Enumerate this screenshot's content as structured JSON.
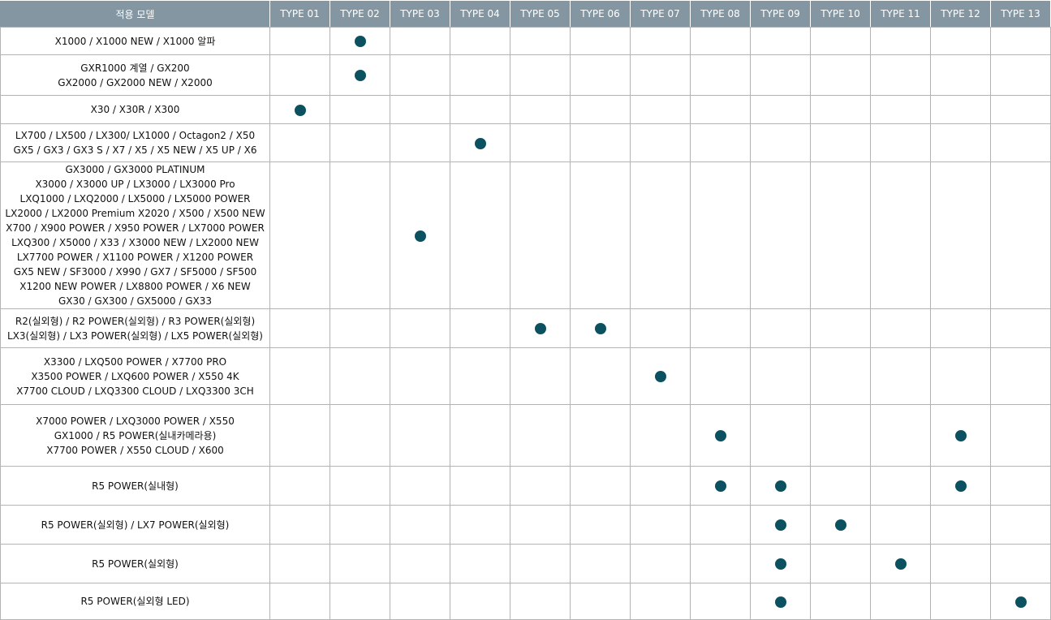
{
  "header": {
    "model_label": "적용 모델",
    "types": [
      "TYPE 01",
      "TYPE 02",
      "TYPE 03",
      "TYPE 04",
      "TYPE 05",
      "TYPE 06",
      "TYPE 07",
      "TYPE 08",
      "TYPE 09",
      "TYPE 10",
      "TYPE 11",
      "TYPE 12",
      "TYPE 13"
    ]
  },
  "dot_color": "#0c5160",
  "rows": [
    {
      "lines": [
        "X1000 / X1000 NEW / X1000 알파"
      ],
      "types": [
        2
      ]
    },
    {
      "lines": [
        "GXR1000 계열 / GX200",
        "GX2000 / GX2000 NEW / X2000"
      ],
      "types": [
        2
      ]
    },
    {
      "lines": [
        "X30 / X30R / X300"
      ],
      "types": [
        1
      ]
    },
    {
      "lines": [
        "LX700 / LX500 / LX300/ LX1000 / Octagon2 / X50",
        "GX5 / GX3 / GX3 S / X7 / X5 / X5 NEW / X5 UP / X6"
      ],
      "types": [
        4
      ]
    },
    {
      "lines": [
        "GX3000 / GX3000 PLATINUM",
        "X3000 / X3000 UP / LX3000 / LX3000 Pro",
        "LXQ1000 / LXQ2000 / LX5000 / LX5000 POWER",
        "LX2000 / LX2000 Premium X2020 / X500 / X500 NEW",
        "X700 / X900 POWER / X950 POWER / LX7000 POWER",
        "LXQ300 / X5000 / X33 / X3000 NEW / LX2000 NEW",
        "LX7700 POWER / X1100 POWER / X1200 POWER",
        "GX5 NEW / SF3000 / X990 / GX7 / SF5000 / SF500",
        "X1200 NEW POWER / LX8800 POWER / X6 NEW",
        "GX30 / GX300 / GX5000 / GX33"
      ],
      "types": [
        3
      ]
    },
    {
      "lines": [
        "R2(실외형) / R2 POWER(실외형) / R3 POWER(실외형)",
        "LX3(실외형) / LX3 POWER(실외형) / LX5 POWER(실외형)"
      ],
      "types": [
        5,
        6
      ]
    },
    {
      "lines": [
        "X3300 / LXQ500 POWER / X7700 PRO",
        "X3500 POWER / LXQ600 POWER / X550 4K",
        "X7700 CLOUD / LXQ3300 CLOUD / LXQ3300 3CH"
      ],
      "types": [
        7
      ]
    },
    {
      "lines": [
        "X7000 POWER / LXQ3000 POWER / X550",
        "GX1000 / R5 POWER(실내카메라용)",
        "X7700 POWER / X550 CLOUD / X600"
      ],
      "types": [
        8,
        12
      ]
    },
    {
      "lines": [
        "R5 POWER(실내형)"
      ],
      "types": [
        8,
        9,
        12
      ]
    },
    {
      "lines": [
        "R5 POWER(실외형) / LX7 POWER(실외형)"
      ],
      "types": [
        9,
        10
      ]
    },
    {
      "lines": [
        "R5 POWER(실외형)"
      ],
      "types": [
        9,
        11
      ]
    },
    {
      "lines": [
        "R5 POWER(실외형 LED)"
      ],
      "types": [
        9,
        13
      ]
    }
  ]
}
